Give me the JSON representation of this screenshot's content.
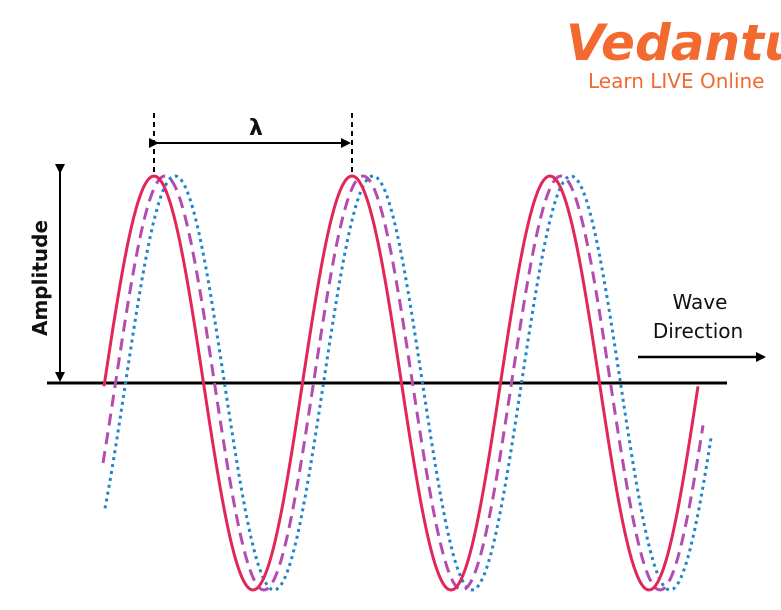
{
  "logo": {
    "brand": "Vedantu",
    "tagline": "Learn LIVE Online",
    "color": "#f26a30"
  },
  "labels": {
    "lambda": "λ",
    "amplitude": "Amplitude",
    "wave_line1": "Wave",
    "wave_line2": "Direction"
  },
  "colors": {
    "wave_primary": "#e2265a",
    "wave_secondary": "#b44bb0",
    "wave_tertiary": "#1f86c9",
    "axis": "#000000"
  }
}
